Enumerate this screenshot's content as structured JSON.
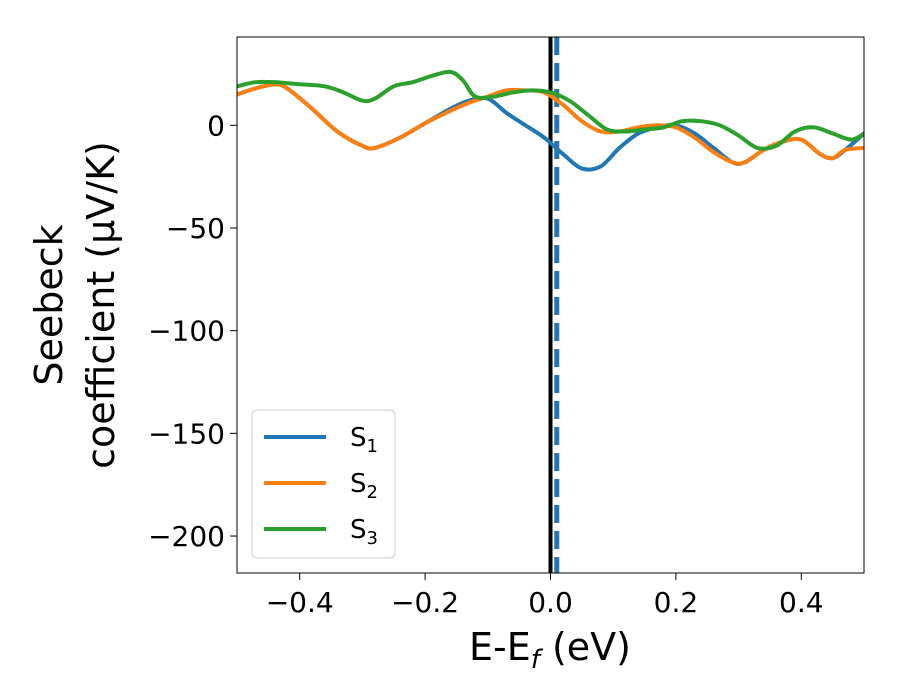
{
  "chart_data": {
    "type": "line",
    "xlabel": "E-E",
    "xlabel_sub": "f",
    "xlabel_unit": " (eV)",
    "ylabel_line1": "Seebeck",
    "ylabel_line2": "coefficient  (μV/K)",
    "xlim": [
      -0.5,
      0.5
    ],
    "ylim": [
      -218,
      43
    ],
    "x_ticks": [
      -0.4,
      -0.2,
      0.0,
      0.2,
      0.4
    ],
    "x_tick_labels": [
      "−0.4",
      "−0.2",
      "0.0",
      "0.2",
      "0.4"
    ],
    "y_ticks": [
      0,
      -50,
      -100,
      -150,
      -200
    ],
    "y_tick_labels": [
      "0",
      "−50",
      "−100",
      "−150",
      "−200"
    ],
    "grid": false,
    "legend_position": "lower-left",
    "vertical_lines": [
      {
        "x": 0.0,
        "style": "solid",
        "color": "#000000"
      },
      {
        "x": 0.01,
        "style": "dashed",
        "color": "#1f77b4"
      }
    ],
    "series": [
      {
        "name": "S",
        "sub": "1",
        "color": "#1f77b4",
        "x": [
          -0.5,
          -0.47,
          -0.44,
          -0.42,
          -0.38,
          -0.34,
          -0.3,
          -0.28,
          -0.24,
          -0.2,
          -0.16,
          -0.13,
          -0.1,
          -0.07,
          -0.04,
          -0.01,
          0.02,
          0.05,
          0.08,
          0.11,
          0.14,
          0.17,
          0.2,
          0.23,
          0.26,
          0.29,
          0.31,
          0.34,
          0.37,
          0.4,
          0.43,
          0.45,
          0.47,
          0.5
        ],
        "y": [
          15,
          18,
          20,
          18,
          8,
          -3,
          -10,
          -11,
          -6,
          1,
          8,
          12,
          13,
          6,
          0,
          -6,
          -14,
          -21,
          -20,
          -11,
          -4,
          -1,
          0,
          -4,
          -11,
          -18,
          -18,
          -12,
          -8,
          -7,
          -14,
          -16,
          -12,
          -4
        ]
      },
      {
        "name": "S",
        "sub": "2",
        "color": "#ff7f0e",
        "x": [
          -0.5,
          -0.47,
          -0.44,
          -0.42,
          -0.38,
          -0.34,
          -0.3,
          -0.28,
          -0.24,
          -0.2,
          -0.16,
          -0.13,
          -0.1,
          -0.07,
          -0.04,
          -0.01,
          0.02,
          0.05,
          0.08,
          0.11,
          0.14,
          0.17,
          0.2,
          0.23,
          0.26,
          0.29,
          0.31,
          0.34,
          0.37,
          0.4,
          0.43,
          0.45,
          0.47,
          0.5
        ],
        "y": [
          15,
          18,
          20,
          18,
          8,
          -3,
          -10,
          -11,
          -6,
          1,
          7,
          11,
          14,
          17,
          17,
          16,
          10,
          2,
          -3,
          -3,
          -1,
          0,
          -1,
          -6,
          -13,
          -18,
          -18,
          -12,
          -8,
          -7,
          -14,
          -16,
          -12,
          -11
        ]
      },
      {
        "name": "S",
        "sub": "3",
        "color": "#2ca02c",
        "x": [
          -0.5,
          -0.47,
          -0.44,
          -0.4,
          -0.36,
          -0.33,
          -0.3,
          -0.28,
          -0.25,
          -0.22,
          -0.19,
          -0.16,
          -0.14,
          -0.12,
          -0.09,
          -0.06,
          -0.03,
          0.0,
          0.03,
          0.06,
          0.09,
          0.12,
          0.15,
          0.18,
          0.21,
          0.24,
          0.27,
          0.3,
          0.33,
          0.36,
          0.39,
          0.42,
          0.45,
          0.48,
          0.5
        ],
        "y": [
          19,
          21,
          21,
          20,
          19,
          16,
          12,
          13,
          19,
          21,
          24,
          26,
          22,
          14,
          14,
          16,
          17,
          16,
          12,
          5,
          -2,
          -3,
          -2,
          -1,
          2,
          2,
          0,
          -5,
          -11,
          -10,
          -3,
          -1,
          -4,
          -7,
          -4
        ]
      }
    ]
  }
}
